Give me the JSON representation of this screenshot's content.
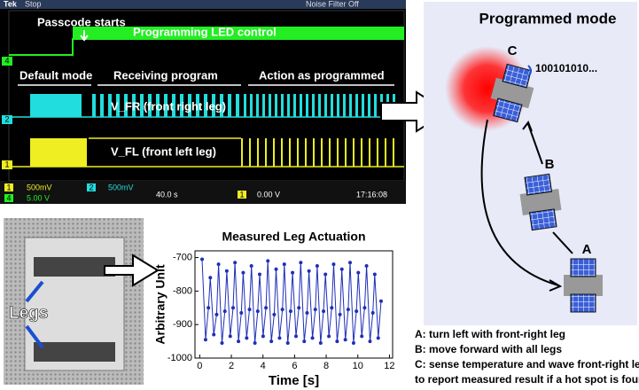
{
  "scope": {
    "brand": "Tek",
    "status": "Stop",
    "filter": "Noise Filter Off",
    "passcode": "Passcode starts",
    "led": "Programming LED control",
    "default_mode": "Default mode",
    "receiving": "Receiving program",
    "action": "Action as programmed",
    "vfr": "V_FR (front right leg)",
    "vfl": "V_FL (front left leg)",
    "markers": [
      "4",
      "2",
      "1"
    ],
    "ch1_id": "1",
    "ch1": "500mV",
    "ch2_id": "2",
    "ch2": "500mV",
    "ch4_id": "4",
    "ch4": "5.00 V",
    "timebase": "40.0 s",
    "trig_id": "1",
    "trigger": "0.00 V",
    "clock": "17:16:08"
  },
  "diagram": {
    "title": "Programmed mode",
    "c": "C",
    "b": "B",
    "a": "A",
    "bits": "100101010...",
    "notes": [
      "A: turn left with front-right leg",
      "B: move forward with all legs",
      "C: sense temperature and wave front-right leg",
      "to report measured result if a hot spot is found"
    ]
  },
  "photo": {
    "label": "Legs"
  },
  "plot": {
    "type": "line",
    "title": "Measured Leg Actuation",
    "x_label": "Time [s]",
    "y_label": "Arbitrary Unit",
    "color": "#1f2fb8",
    "x": [
      0.15,
      0.37,
      0.55,
      0.67,
      0.89,
      1.07,
      1.19,
      1.41,
      1.59,
      1.71,
      1.93,
      2.11,
      2.23,
      2.45,
      2.63,
      2.75,
      2.97,
      3.15,
      3.27,
      3.49,
      3.67,
      3.79,
      4.01,
      4.19,
      4.31,
      4.53,
      4.71,
      4.83,
      5.05,
      5.23,
      5.35,
      5.57,
      5.75,
      5.87,
      6.09,
      6.27,
      6.39,
      6.61,
      6.79,
      6.91,
      7.13,
      7.31,
      7.43,
      7.65,
      7.83,
      7.95,
      8.17,
      8.35,
      8.47,
      8.69,
      8.87,
      8.99,
      9.21,
      9.39,
      9.51,
      9.73,
      9.91,
      10.03,
      10.25,
      10.43,
      10.55,
      10.77,
      10.95,
      11.07,
      11.29,
      11.47
    ],
    "values": [
      -705,
      -945,
      -850,
      -760,
      -930,
      -870,
      -720,
      -955,
      -860,
      -740,
      -935,
      -850,
      -715,
      -950,
      -865,
      -745,
      -940,
      -855,
      -725,
      -955,
      -860,
      -750,
      -935,
      -850,
      -710,
      -950,
      -870,
      -735,
      -940,
      -855,
      -720,
      -955,
      -860,
      -745,
      -935,
      -850,
      -715,
      -950,
      -865,
      -740,
      -940,
      -855,
      -725,
      -955,
      -860,
      -750,
      -935,
      -850,
      -720,
      -950,
      -870,
      -735,
      -945,
      -855,
      -715,
      -955,
      -860,
      -745,
      -935,
      -850,
      -725,
      -950,
      -865,
      -750,
      -940,
      -830
    ],
    "xlim": [
      -0.3,
      12.2
    ],
    "ylim": [
      -1000,
      -680
    ],
    "xticks": [
      0,
      2,
      4,
      6,
      8,
      10,
      12
    ],
    "yticks": [
      -1000,
      -900,
      -800,
      -700
    ]
  }
}
